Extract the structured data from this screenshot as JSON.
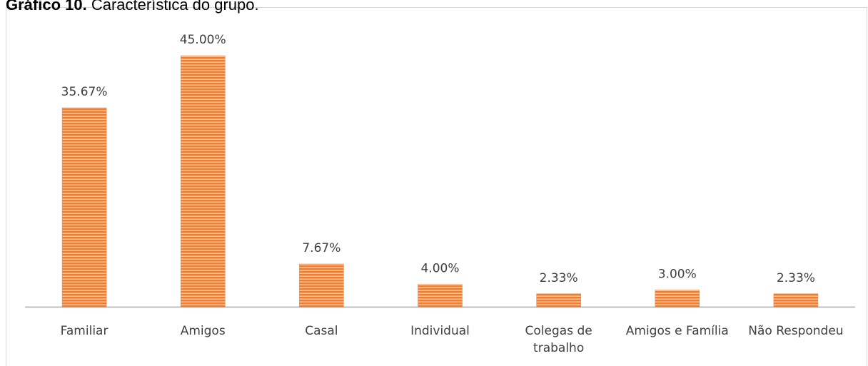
{
  "chart_data": {
    "type": "bar",
    "title_label": "Gráfico 10.",
    "title": "Característica do grupo.",
    "categories": [
      "Familiar",
      "Amigos",
      "Casal",
      "Individual",
      "Colegas de trabalho",
      "Amigos e Família",
      "Não Respondeu"
    ],
    "values": [
      35.67,
      45.0,
      7.67,
      4.0,
      2.33,
      3.0,
      2.33
    ],
    "value_labels": [
      "35.67%",
      "45.00%",
      "7.67%",
      "4.00%",
      "2.33%",
      "3.00%",
      "2.33%"
    ],
    "color": "#ed7d31"
  }
}
